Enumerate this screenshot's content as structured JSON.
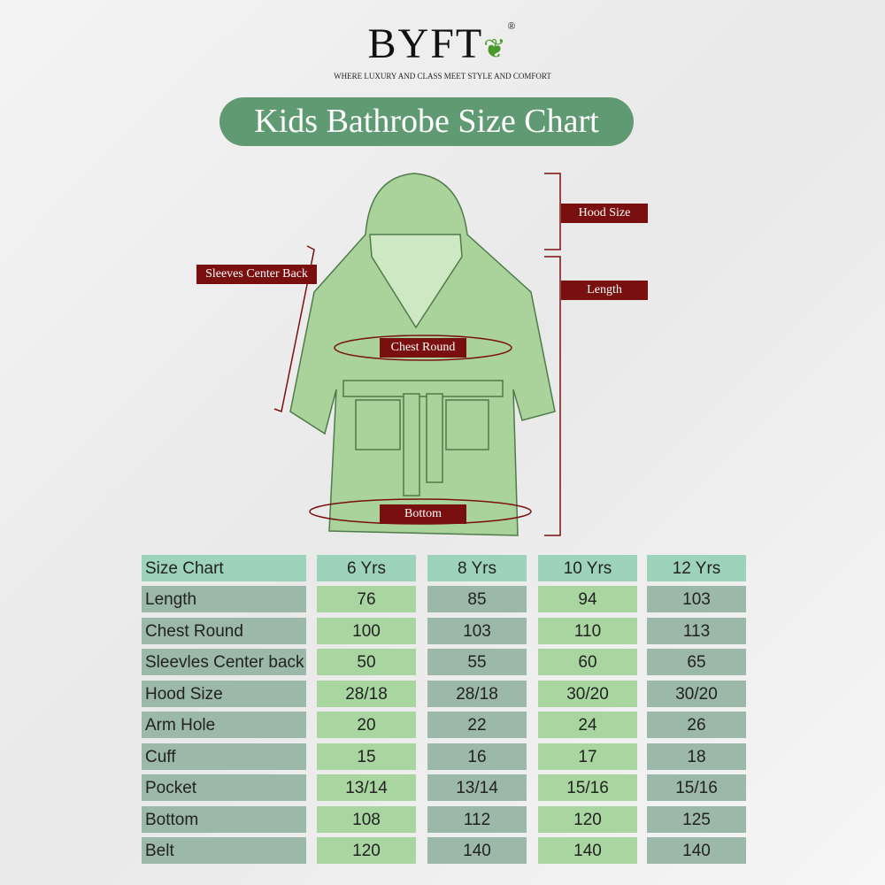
{
  "brand": {
    "name": "BYFT",
    "registered": "®",
    "tagline": "WHERE LUXURY AND CLASS MEET STYLE AND COMFORT"
  },
  "title": "Kids Bathrobe Size Chart",
  "diagram_labels": {
    "hood": "Hood Size",
    "length": "Length",
    "sleeves": "Sleeves Center Back",
    "chest": "Chest Round",
    "bottom": "Bottom"
  },
  "colors": {
    "accent": "#5f9a72",
    "label_bg": "#7a0f0f",
    "robe": "#a9d39a",
    "header": "#9dd3bb",
    "cell_light": "#a8d5a0",
    "cell_gray": "#9bb8a8"
  },
  "table": {
    "headers": [
      "Size Chart",
      "6 Yrs",
      "8 Yrs",
      "10 Yrs",
      "12 Yrs"
    ],
    "rows": [
      [
        "Length",
        "76",
        "85",
        "94",
        "103"
      ],
      [
        "Chest Round",
        "100",
        "103",
        "110",
        "113"
      ],
      [
        "Sleevles Center back",
        "50",
        "55",
        "60",
        "65"
      ],
      [
        "Hood Size",
        "28/18",
        "28/18",
        "30/20",
        "30/20"
      ],
      [
        "Arm Hole",
        "20",
        "22",
        "24",
        "26"
      ],
      [
        "Cuff",
        "15",
        "16",
        "17",
        "18"
      ],
      [
        "Pocket",
        "13/14",
        "13/14",
        "15/16",
        "15/16"
      ],
      [
        "Bottom",
        "108",
        "112",
        "120",
        "125"
      ],
      [
        "Belt",
        "120",
        "140",
        "140",
        "140"
      ]
    ]
  }
}
